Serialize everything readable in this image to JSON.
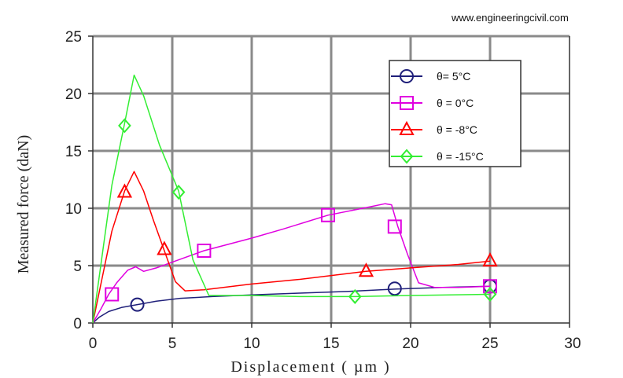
{
  "watermark": "www.engineeringcivil.com",
  "chart_data": {
    "type": "line",
    "xlabel": "Displacement ( µm )",
    "ylabel": "Measured force (daN)",
    "xlim": [
      0,
      30
    ],
    "ylim": [
      0,
      25
    ],
    "xticks": [
      "0",
      "5",
      "10",
      "15",
      "20",
      "25",
      "30"
    ],
    "yticks": [
      "0",
      "5",
      "10",
      "15",
      "20",
      "25"
    ],
    "grid": true,
    "legend_position": "top-right",
    "series": [
      {
        "name": "θ= 5°C",
        "color": "#1f1f7a",
        "marker": "circle",
        "x": [
          0,
          0.4,
          1,
          1.8,
          2.8,
          4,
          5.5,
          7.5,
          10,
          13,
          16,
          19,
          22,
          25
        ],
        "y": [
          0,
          0.5,
          1.0,
          1.35,
          1.6,
          1.9,
          2.15,
          2.3,
          2.45,
          2.6,
          2.75,
          2.95,
          3.1,
          3.2
        ],
        "marker_x": [
          2.8,
          19,
          25
        ],
        "marker_y": [
          1.6,
          3.0,
          3.2
        ]
      },
      {
        "name": "θ = 0°C",
        "color": "#e000e0",
        "marker": "square",
        "x": [
          0,
          0.5,
          1,
          1.5,
          2.2,
          2.7,
          3.2,
          4,
          5,
          7,
          10,
          12,
          14.8,
          17,
          18.4,
          18.8,
          19.2,
          19.8,
          20.5,
          21.5,
          23,
          25
        ],
        "y": [
          0,
          1.2,
          2.5,
          3.5,
          4.6,
          4.9,
          4.5,
          4.8,
          5.3,
          6.3,
          7.4,
          8.2,
          9.4,
          10.0,
          10.4,
          10.3,
          8.4,
          6.0,
          3.5,
          3.1,
          3.1,
          3.2
        ],
        "marker_x": [
          1.2,
          7,
          14.8,
          19,
          25
        ],
        "marker_y": [
          2.5,
          6.3,
          9.4,
          8.4,
          3.2
        ]
      },
      {
        "name": "θ = -8°C",
        "color": "#ff0000",
        "marker": "triangle",
        "x": [
          0,
          0.6,
          1.2,
          2,
          2.6,
          3.2,
          3.8,
          4.5,
          5.2,
          5.8,
          7,
          10,
          13,
          17.2,
          20,
          23,
          25
        ],
        "y": [
          0,
          4,
          8,
          11.5,
          13.2,
          11.5,
          9,
          6.3,
          3.6,
          2.8,
          2.9,
          3.4,
          3.8,
          4.5,
          4.8,
          5.1,
          5.4
        ],
        "marker_x": [
          2,
          4.5,
          17.2,
          25
        ],
        "marker_y": [
          11.4,
          6.4,
          4.5,
          5.4
        ]
      },
      {
        "name": "θ = -15°C",
        "color": "#33ee33",
        "marker": "diamond",
        "x": [
          0,
          0.6,
          1.2,
          2,
          2.6,
          3.2,
          4.2,
          5.4,
          6.3,
          7.3,
          10,
          13,
          16.5,
          20,
          25
        ],
        "y": [
          0,
          6,
          12,
          17.4,
          21.6,
          19.8,
          15.5,
          11.5,
          5.5,
          2.4,
          2.4,
          2.3,
          2.3,
          2.4,
          2.5
        ],
        "marker_x": [
          2,
          5.4,
          16.5,
          25
        ],
        "marker_y": [
          17.2,
          11.4,
          2.3,
          2.5
        ]
      }
    ]
  }
}
